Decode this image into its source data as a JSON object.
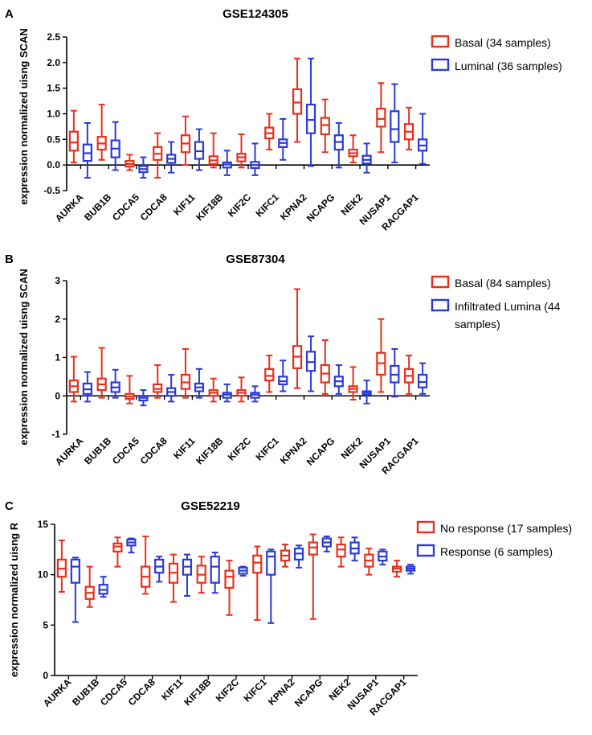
{
  "colors": {
    "red": "#e8301c",
    "blue": "#2a3bd6",
    "axis": "#000000"
  },
  "chart_data": [
    {
      "type": "boxplot",
      "panel_label": "A",
      "title": "GSE124305",
      "ylabel": "expression normalized uisng SCAN",
      "xlabel": "",
      "ylim": [
        -0.5,
        2.5
      ],
      "yticks": [
        "-0.5",
        "0.0",
        "0.5",
        "1.0",
        "1.5",
        "2.0",
        "2.5"
      ],
      "ytick_values": [
        -0.5,
        0,
        0.5,
        1,
        1.5,
        2,
        2.5
      ],
      "categories": [
        "AURKA",
        "BUB1B",
        "CDCA5",
        "CDCA8",
        "KIF11",
        "KIF18B",
        "KIF2C",
        "KIFC1",
        "KPNA2",
        "NCAPG",
        "NEK2",
        "NUSAP1",
        "RACGAP1"
      ],
      "legend": [
        "Basal (34 samples)",
        "Luminal (36 samples)"
      ],
      "series": [
        {
          "name": "Basal (34 samples)",
          "color": "red",
          "boxes": [
            [
              0.05,
              0.28,
              0.44,
              0.65,
              1.06
            ],
            [
              0.1,
              0.3,
              0.42,
              0.55,
              1.18
            ],
            [
              -0.1,
              -0.03,
              0.02,
              0.08,
              0.2
            ],
            [
              -0.25,
              0.1,
              0.22,
              0.35,
              0.62
            ],
            [
              0.0,
              0.25,
              0.42,
              0.58,
              0.95
            ],
            [
              -0.05,
              0.02,
              0.09,
              0.17,
              0.62
            ],
            [
              -0.05,
              0.07,
              0.15,
              0.22,
              0.6
            ],
            [
              0.3,
              0.52,
              0.62,
              0.73,
              1.0
            ],
            [
              0.45,
              1.0,
              1.22,
              1.48,
              2.08
            ],
            [
              0.25,
              0.6,
              0.78,
              0.92,
              1.28
            ],
            [
              0.05,
              0.17,
              0.23,
              0.3,
              0.58
            ],
            [
              0.25,
              0.75,
              0.9,
              1.1,
              1.6
            ],
            [
              0.3,
              0.5,
              0.65,
              0.8,
              1.12
            ]
          ]
        },
        {
          "name": "Luminal (36 samples)",
          "color": "blue",
          "boxes": [
            [
              -0.25,
              0.08,
              0.23,
              0.4,
              0.82
            ],
            [
              -0.1,
              0.15,
              0.32,
              0.48,
              0.84
            ],
            [
              -0.25,
              -0.14,
              -0.08,
              -0.02,
              0.15
            ],
            [
              -0.15,
              0.04,
              0.12,
              0.2,
              0.45
            ],
            [
              -0.1,
              0.12,
              0.27,
              0.45,
              0.7
            ],
            [
              -0.2,
              -0.05,
              0.01,
              0.05,
              0.28
            ],
            [
              -0.2,
              -0.06,
              0.0,
              0.06,
              0.42
            ],
            [
              0.1,
              0.35,
              0.43,
              0.5,
              0.9
            ],
            [
              -0.02,
              0.62,
              0.88,
              1.18,
              2.08
            ],
            [
              -0.05,
              0.3,
              0.45,
              0.58,
              0.82
            ],
            [
              -0.15,
              0.03,
              0.1,
              0.18,
              0.42
            ],
            [
              0.05,
              0.45,
              0.7,
              1.05,
              1.58
            ],
            [
              0.02,
              0.28,
              0.38,
              0.5,
              1.0
            ]
          ]
        }
      ]
    },
    {
      "type": "boxplot",
      "panel_label": "B",
      "title": "GSE87304",
      "ylabel": "expression normalized uisng SCAN",
      "xlabel": "",
      "ylim": [
        -1,
        3
      ],
      "yticks": [
        "-1",
        "0",
        "1",
        "2",
        "3"
      ],
      "ytick_values": [
        -1,
        0,
        1,
        2,
        3
      ],
      "categories": [
        "AURKA",
        "BUB1B",
        "CDCA5",
        "CDCA8",
        "KIF11",
        "KIF18B",
        "KIF2C",
        "KIFC1",
        "KPNA2",
        "NCAPG",
        "NEK2",
        "NUSAP1",
        "RACGAP1"
      ],
      "legend": [
        "Basal (84 samples)",
        "Infiltrated Lumina (44",
        "samples)"
      ],
      "series": [
        {
          "name": "Basal (84 samples)",
          "color": "red",
          "boxes": [
            [
              -0.15,
              0.1,
              0.25,
              0.4,
              1.02
            ],
            [
              -0.05,
              0.15,
              0.3,
              0.45,
              1.25
            ],
            [
              -0.2,
              -0.08,
              -0.02,
              0.05,
              0.52
            ],
            [
              -0.05,
              0.1,
              0.18,
              0.3,
              0.8
            ],
            [
              -0.05,
              0.18,
              0.35,
              0.55,
              1.22
            ],
            [
              -0.15,
              0.0,
              0.08,
              0.15,
              0.45
            ],
            [
              -0.15,
              0.0,
              0.08,
              0.15,
              0.48
            ],
            [
              0.1,
              0.4,
              0.52,
              0.7,
              1.05
            ],
            [
              0.2,
              0.72,
              1.02,
              1.3,
              2.78
            ],
            [
              0.05,
              0.35,
              0.58,
              0.8,
              1.45
            ],
            [
              -0.1,
              0.1,
              0.18,
              0.25,
              0.75
            ],
            [
              0.1,
              0.55,
              0.85,
              1.12,
              2.0
            ],
            [
              0.05,
              0.35,
              0.52,
              0.7,
              1.05
            ]
          ]
        },
        {
          "name": "Infiltrated Lumina (44 samples)",
          "color": "blue",
          "boxes": [
            [
              -0.15,
              0.05,
              0.17,
              0.32,
              0.62
            ],
            [
              -0.05,
              0.1,
              0.22,
              0.35,
              0.68
            ],
            [
              -0.25,
              -0.12,
              -0.05,
              0.0,
              0.15
            ],
            [
              -0.15,
              0.0,
              0.1,
              0.2,
              0.55
            ],
            [
              -0.05,
              0.12,
              0.22,
              0.32,
              0.7
            ],
            [
              -0.15,
              -0.05,
              0.03,
              0.08,
              0.3
            ],
            [
              -0.15,
              -0.05,
              0.03,
              0.08,
              0.25
            ],
            [
              0.12,
              0.3,
              0.38,
              0.5,
              0.92
            ],
            [
              0.12,
              0.65,
              0.88,
              1.15,
              1.55
            ],
            [
              0.05,
              0.25,
              0.38,
              0.5,
              0.8
            ],
            [
              -0.2,
              0.03,
              0.08,
              0.12,
              0.4
            ],
            [
              -0.02,
              0.35,
              0.55,
              0.78,
              1.22
            ],
            [
              0.05,
              0.22,
              0.36,
              0.55,
              0.85
            ]
          ]
        }
      ]
    },
    {
      "type": "boxplot",
      "panel_label": "C",
      "title": "GSE52219",
      "ylabel": "expression normalized uisng R",
      "xlabel": "",
      "ylim": [
        0,
        15
      ],
      "yticks": [
        "0",
        "5",
        "10",
        "15"
      ],
      "ytick_values": [
        0,
        5,
        10,
        15
      ],
      "categories": [
        "AURKA",
        "BUB1B",
        "CDCA5",
        "CDCA8",
        "KIF11",
        "KIF18B",
        "KIF2C",
        "KIFC1",
        "KPNA2",
        "NCAPG",
        "NEK2",
        "NUSAP1",
        "RACGAP1"
      ],
      "legend": [
        "No response (17 samples)",
        "Response (6 samples)"
      ],
      "series": [
        {
          "name": "No response (17 samples)",
          "color": "red",
          "boxes": [
            [
              8.3,
              9.8,
              10.6,
              11.5,
              13.4
            ],
            [
              6.8,
              7.6,
              8.2,
              8.8,
              10.8
            ],
            [
              10.8,
              12.3,
              12.8,
              13.1,
              13.7
            ],
            [
              8.1,
              8.8,
              9.8,
              10.8,
              13.8
            ],
            [
              7.3,
              9.2,
              10.2,
              11.1,
              12.0
            ],
            [
              8.2,
              9.2,
              10.0,
              10.9,
              11.8
            ],
            [
              6.0,
              8.7,
              9.8,
              10.4,
              11.4
            ],
            [
              5.5,
              10.2,
              11.2,
              11.9,
              12.8
            ],
            [
              10.8,
              11.4,
              11.9,
              12.4,
              13.0
            ],
            [
              5.6,
              12.0,
              12.7,
              13.2,
              14.0
            ],
            [
              10.8,
              11.8,
              12.5,
              13.0,
              13.7
            ],
            [
              10.0,
              10.8,
              11.4,
              12.0,
              12.6
            ],
            [
              9.8,
              10.3,
              10.6,
              10.8,
              11.4
            ]
          ]
        },
        {
          "name": "Response (6 samples)",
          "color": "blue",
          "boxes": [
            [
              5.3,
              9.2,
              10.8,
              11.5,
              11.7
            ],
            [
              7.8,
              8.1,
              8.5,
              9.0,
              9.8
            ],
            [
              12.2,
              12.9,
              13.2,
              13.5,
              13.6
            ],
            [
              9.3,
              10.2,
              10.8,
              11.5,
              11.8
            ],
            [
              7.9,
              10.0,
              10.8,
              11.5,
              12.0
            ],
            [
              8.2,
              9.2,
              10.8,
              11.8,
              12.2
            ],
            [
              9.9,
              10.1,
              10.4,
              10.7,
              10.8
            ],
            [
              5.2,
              10.0,
              11.8,
              12.3,
              12.5
            ],
            [
              10.7,
              11.5,
              12.1,
              12.6,
              12.9
            ],
            [
              12.3,
              12.8,
              13.2,
              13.6,
              13.8
            ],
            [
              11.4,
              12.1,
              12.6,
              13.2,
              13.7
            ],
            [
              11.0,
              11.4,
              11.8,
              12.3,
              12.5
            ],
            [
              10.1,
              10.4,
              10.6,
              10.8,
              11.0
            ]
          ]
        }
      ]
    }
  ]
}
